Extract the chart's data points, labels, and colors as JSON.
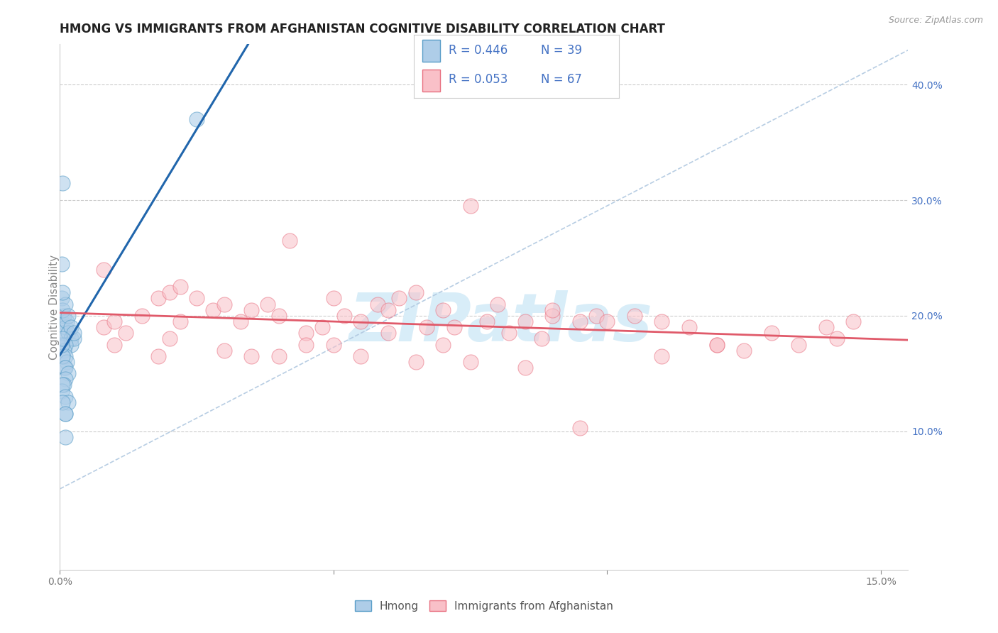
{
  "title": "HMONG VS IMMIGRANTS FROM AFGHANISTAN COGNITIVE DISABILITY CORRELATION CHART",
  "source": "Source: ZipAtlas.com",
  "ylabel": "Cognitive Disability",
  "xlim": [
    0.0,
    0.155
  ],
  "ylim": [
    -0.02,
    0.435
  ],
  "x_tick_positions": [
    0.0,
    0.05,
    0.1,
    0.15
  ],
  "x_tick_labels": [
    "0.0%",
    "",
    "",
    "15.0%"
  ],
  "y_tick_positions": [
    0.1,
    0.2,
    0.3,
    0.4
  ],
  "y_tick_labels": [
    "10.0%",
    "20.0%",
    "30.0%",
    "40.0%"
  ],
  "blue_face_color": "#aecde8",
  "blue_edge_color": "#5a9ec8",
  "blue_line_color": "#2166ac",
  "pink_face_color": "#f9c0c8",
  "pink_edge_color": "#e87080",
  "pink_line_color": "#e05a6a",
  "grid_color": "#cccccc",
  "dash_line_color": "#b0c8e0",
  "axis_color": "#cccccc",
  "text_color": "#4472c4",
  "title_color": "#222222",
  "source_color": "#999999",
  "watermark_text": "ZIPatlas",
  "watermark_color": "#d8edf8",
  "legend_R1": "R = 0.446",
  "legend_N1": "N = 39",
  "legend_R2": "R = 0.053",
  "legend_N2": "N = 67",
  "hmong_label": "Hmong",
  "afghan_label": "Immigrants from Afghanistan",
  "hmong_x": [
    0.0003,
    0.0005,
    0.0007,
    0.001,
    0.0012,
    0.0015,
    0.002,
    0.002,
    0.0025,
    0.0003,
    0.0005,
    0.001,
    0.0015,
    0.002,
    0.0025,
    0.001,
    0.0005,
    0.0003,
    0.0007,
    0.001,
    0.0012,
    0.0008,
    0.0005,
    0.001,
    0.0015,
    0.0003,
    0.0005,
    0.001,
    0.0007,
    0.0003,
    0.0005,
    0.001,
    0.0015,
    0.001,
    0.0005,
    0.025,
    0.001,
    0.001,
    0.0005
  ],
  "hmong_y": [
    0.195,
    0.185,
    0.2,
    0.19,
    0.195,
    0.185,
    0.18,
    0.175,
    0.18,
    0.215,
    0.205,
    0.21,
    0.2,
    0.19,
    0.185,
    0.175,
    0.22,
    0.245,
    0.17,
    0.165,
    0.16,
    0.155,
    0.165,
    0.155,
    0.15,
    0.175,
    0.18,
    0.145,
    0.14,
    0.135,
    0.14,
    0.13,
    0.125,
    0.115,
    0.125,
    0.37,
    0.115,
    0.095,
    0.315
  ],
  "afghan_x": [
    0.008,
    0.01,
    0.012,
    0.015,
    0.018,
    0.02,
    0.022,
    0.025,
    0.028,
    0.03,
    0.033,
    0.035,
    0.038,
    0.04,
    0.042,
    0.045,
    0.048,
    0.05,
    0.052,
    0.055,
    0.058,
    0.06,
    0.062,
    0.065,
    0.067,
    0.07,
    0.072,
    0.075,
    0.078,
    0.08,
    0.082,
    0.085,
    0.088,
    0.09,
    0.095,
    0.098,
    0.1,
    0.105,
    0.11,
    0.115,
    0.12,
    0.125,
    0.13,
    0.135,
    0.14,
    0.142,
    0.145,
    0.01,
    0.02,
    0.03,
    0.045,
    0.055,
    0.065,
    0.075,
    0.085,
    0.095,
    0.11,
    0.022,
    0.035,
    0.05,
    0.07,
    0.09,
    0.12,
    0.008,
    0.018,
    0.04,
    0.06
  ],
  "afghan_y": [
    0.19,
    0.195,
    0.185,
    0.2,
    0.215,
    0.22,
    0.195,
    0.215,
    0.205,
    0.21,
    0.195,
    0.205,
    0.21,
    0.2,
    0.265,
    0.185,
    0.19,
    0.215,
    0.2,
    0.195,
    0.21,
    0.205,
    0.215,
    0.22,
    0.19,
    0.205,
    0.19,
    0.295,
    0.195,
    0.21,
    0.185,
    0.195,
    0.18,
    0.2,
    0.195,
    0.2,
    0.195,
    0.2,
    0.195,
    0.19,
    0.175,
    0.17,
    0.185,
    0.175,
    0.19,
    0.18,
    0.195,
    0.175,
    0.18,
    0.17,
    0.175,
    0.165,
    0.16,
    0.16,
    0.155,
    0.103,
    0.165,
    0.225,
    0.165,
    0.175,
    0.175,
    0.205,
    0.175,
    0.24,
    0.165,
    0.165,
    0.185
  ]
}
